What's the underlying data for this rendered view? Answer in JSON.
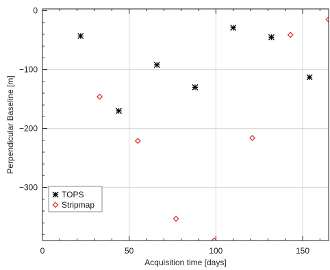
{
  "chart_data": {
    "type": "scatter",
    "xlabel": "Acquisition time [days]",
    "ylabel": "Perpendicular Baseline [m]",
    "xlim": [
      0,
      165
    ],
    "ylim": [
      -390,
      3
    ],
    "grid": true,
    "legend_placement": "bottom-left",
    "x_ticks": [
      0,
      50,
      100,
      150
    ],
    "x_tick_labels": [
      "0",
      "50",
      "100",
      "150"
    ],
    "y_ticks": [
      0,
      -100,
      -200,
      -300
    ],
    "y_tick_labels": [
      "0",
      "−100",
      "−200",
      "−300"
    ],
    "series": [
      {
        "name": "TOPS",
        "marker": "asterisk",
        "color": "#000000",
        "x": [
          22,
          44,
          66,
          88,
          110,
          132,
          154
        ],
        "y": [
          -43,
          -170,
          -92,
          -130,
          -29,
          -45,
          -113
        ]
      },
      {
        "name": "Stripmap",
        "marker": "diamond",
        "color": "#e03030",
        "x": [
          33,
          55,
          77,
          99,
          121,
          143,
          165
        ],
        "y": [
          -146,
          -221,
          -353,
          -390,
          -216,
          -41,
          -15
        ]
      }
    ]
  }
}
